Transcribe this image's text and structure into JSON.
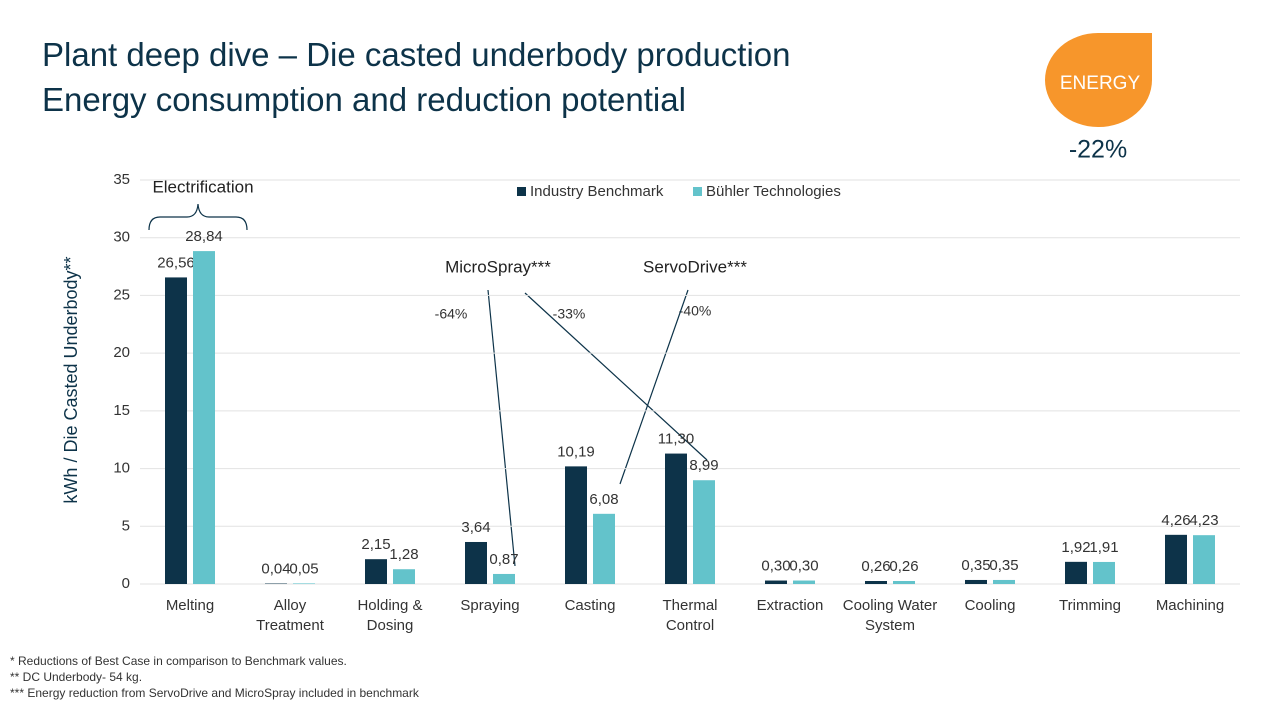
{
  "chart_data": {
    "type": "bar",
    "title": [
      "Plant deep dive – Die casted underbody production",
      "Energy consumption and reduction potential"
    ],
    "y_label": "kWh / Die Casted Underbody**",
    "categories": [
      "Melting",
      "Alloy\nTreatment",
      "Holding &\nDosing",
      "Spraying",
      "Casting",
      "Thermal\nControl",
      "Extraction",
      "Cooling Water\nSystem",
      "Cooling",
      "Trimming",
      "Machining"
    ],
    "series": [
      {
        "name": "Industry Benchmark",
        "color": "#0d3349",
        "values": [
          26.56,
          0.04,
          2.15,
          3.64,
          10.19,
          11.3,
          0.3,
          0.26,
          0.35,
          1.92,
          4.26
        ],
        "value_labels": [
          "26,56",
          "0,04",
          "2,15",
          "3,64",
          "10,19",
          "11,30",
          "0,30",
          "0,26",
          "0,35",
          "1,92",
          "4,26"
        ]
      },
      {
        "name": "Bühler Technologies",
        "color": "#63c3cb",
        "values": [
          28.84,
          0.05,
          1.28,
          0.87,
          6.08,
          8.99,
          0.3,
          0.26,
          0.35,
          1.91,
          4.23
        ],
        "value_labels": [
          "28,84",
          "0,05",
          "1,28",
          "0,87",
          "6,08",
          "8,99",
          "0,30",
          "0,26",
          "0,35",
          "1,91",
          "4,23"
        ]
      }
    ],
    "ylim": [
      0,
      35
    ],
    "yticks": [
      0,
      5,
      10,
      15,
      20,
      25,
      30,
      35
    ],
    "grid": true,
    "legend": "top",
    "annotations": [
      "Electrification",
      "MicroSpray***",
      "ServoDrive***",
      "-64%",
      "-33%",
      "-40%"
    ],
    "badge": {
      "label": "ENERGY",
      "change": "-22%",
      "color": "#f7962b"
    },
    "footnotes": [
      "* Reductions of Best Case in comparison to Benchmark values.",
      "** DC Underbody- 54 kg.",
      "*** Energy reduction from ServoDrive and MicroSpray included in benchmark"
    ]
  }
}
